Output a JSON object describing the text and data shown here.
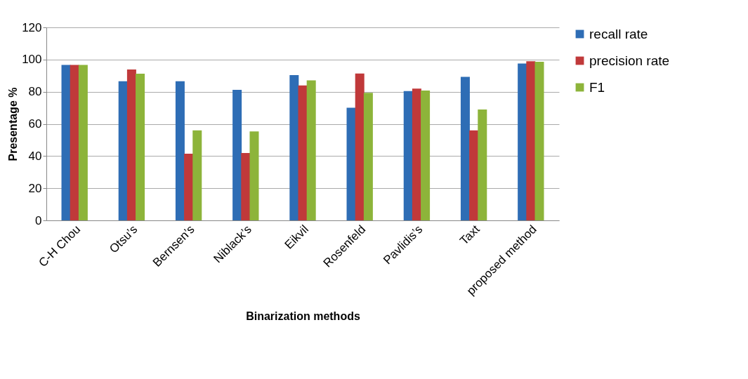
{
  "chart_data": {
    "type": "bar",
    "xlabel": "Binarization methods",
    "ylabel": "Presentage %",
    "categories": [
      "C-H Chou",
      "Otsu’s",
      "Bernsen’s",
      "Niblack’s",
      "Eikvil",
      "Rosenfeld",
      "Pavlidis’s",
      "Taxt",
      "proposed method"
    ],
    "series": [
      {
        "name": "recall rate",
        "color": "#2e6db5",
        "values": [
          96.7,
          86.5,
          86.5,
          81.2,
          90.3,
          70,
          80.4,
          89.2,
          97.5
        ]
      },
      {
        "name": "precision rate",
        "color": "#c0393a",
        "values": [
          96.7,
          93.8,
          41.5,
          41.9,
          83.9,
          91.3,
          81.9,
          56,
          99
        ]
      },
      {
        "name": "F1",
        "color": "#8db43a",
        "values": [
          96.7,
          91.2,
          56,
          55.3,
          87.1,
          79.3,
          80.7,
          68.9,
          98.6
        ]
      }
    ],
    "ylim": [
      0,
      120
    ],
    "yticks": [
      0,
      20,
      40,
      60,
      80,
      100,
      120
    ],
    "grid": "y",
    "legend": "right"
  }
}
